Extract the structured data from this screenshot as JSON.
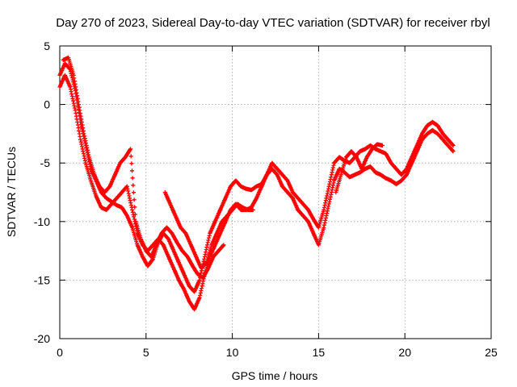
{
  "chart_data": {
    "type": "scatter",
    "title": "Day 270 of 2023, Sidereal Day-to-day VTEC variation (SDTVAR) for receiver rbyl",
    "xlabel": "GPS time / hours",
    "ylabel": "SDTVAR / TECUs",
    "xlim": [
      0,
      25
    ],
    "ylim": [
      -20,
      5
    ],
    "x_ticks": [
      0,
      5,
      10,
      15,
      20,
      25
    ],
    "y_ticks": [
      5,
      0,
      -5,
      -10,
      -15,
      -20
    ],
    "grid": true,
    "marker": "+",
    "series": [
      {
        "name": "track-1",
        "color": "#ff0000",
        "x": [
          0.0,
          0.3,
          0.6,
          0.9,
          1.2,
          1.5,
          1.8,
          2.1,
          2.4,
          2.7,
          3.0,
          3.3,
          3.6,
          3.9,
          4.2,
          4.5,
          4.8,
          5.1,
          5.4,
          5.7,
          6.0,
          6.3,
          6.6,
          6.9,
          7.2,
          7.5,
          7.8,
          8.1,
          8.4,
          8.7,
          9.0,
          9.3,
          9.6,
          9.9,
          10.2,
          10.5,
          10.8,
          11.1,
          11.4,
          11.7,
          12.0,
          12.3,
          12.6,
          12.9,
          13.2,
          13.5,
          13.8,
          14.1,
          14.4,
          14.7,
          15.0,
          15.3,
          15.6,
          15.9,
          16.2,
          16.5,
          16.8,
          17.1,
          17.4,
          17.7,
          18.0,
          18.3,
          18.6,
          18.9,
          19.2,
          19.5,
          19.8,
          20.1,
          20.4,
          20.7,
          21.0,
          21.3,
          21.6,
          21.9,
          22.2,
          22.5,
          22.8
        ],
        "y": [
          2.5,
          3.5,
          3.0,
          1.2,
          -1.5,
          -3.5,
          -5.5,
          -6.5,
          -7.5,
          -8.0,
          -8.3,
          -8.6,
          -8.8,
          -9.5,
          -10.5,
          -12.0,
          -13.0,
          -13.8,
          -13.2,
          -11.8,
          -11.0,
          -11.5,
          -12.5,
          -13.5,
          -14.5,
          -15.5,
          -16.0,
          -15.0,
          -13.0,
          -11.0,
          -10.0,
          -9.0,
          -8.0,
          -7.0,
          -6.5,
          -7.0,
          -7.2,
          -7.3,
          -7.0,
          -6.8,
          -6.0,
          -5.0,
          -5.5,
          -6.0,
          -6.5,
          -7.5,
          -8.0,
          -8.5,
          -9.0,
          -9.8,
          -10.5,
          -9.0,
          -7.0,
          -5.0,
          -4.5,
          -4.8,
          -5.0,
          -4.5,
          -4.0,
          -3.8,
          -3.5,
          -3.8,
          -4.0,
          -4.2,
          -5.0,
          -5.5,
          -6.0,
          -5.5,
          -4.5,
          -3.5,
          -2.5,
          -1.8,
          -1.5,
          -1.8,
          -2.5,
          -3.0,
          -3.5
        ]
      },
      {
        "name": "track-2",
        "color": "#ff0000",
        "x": [
          0.0,
          0.3,
          0.6,
          0.9,
          1.2,
          1.5,
          1.8,
          2.1,
          2.4,
          2.7,
          3.0,
          3.3,
          3.6,
          3.9,
          4.2,
          4.5,
          4.8,
          5.1,
          5.4,
          5.7,
          6.0,
          6.3,
          6.6,
          6.9,
          7.2,
          7.5,
          7.8,
          8.1,
          8.4,
          8.7,
          9.0,
          9.3,
          9.6,
          9.9,
          10.2,
          10.5,
          10.8,
          11.1,
          11.4,
          11.7,
          12.0,
          12.3,
          12.6,
          12.9,
          13.2,
          13.5,
          13.8,
          14.1,
          14.4,
          14.7,
          15.0,
          15.3,
          15.6,
          15.9,
          16.2,
          16.5,
          16.8,
          17.1,
          17.4,
          17.7,
          18.0,
          18.3,
          18.6,
          18.9,
          19.2,
          19.5,
          19.8,
          20.1,
          20.4,
          20.7,
          21.0,
          21.3,
          21.6,
          21.9,
          22.2,
          22.5,
          22.8
        ],
        "y": [
          1.5,
          2.5,
          1.5,
          -0.5,
          -3.0,
          -5.0,
          -6.5,
          -7.8,
          -8.8,
          -9.0,
          -8.5,
          -8.0,
          -7.5,
          -7.0,
          -9.0,
          -11.0,
          -12.0,
          -12.5,
          -12.0,
          -11.5,
          -12.0,
          -13.0,
          -14.0,
          -15.0,
          -15.8,
          -16.8,
          -17.5,
          -16.5,
          -14.5,
          -13.0,
          -12.0,
          -11.0,
          -10.0,
          -9.0,
          -8.5,
          -9.0,
          -9.0,
          -8.8,
          -8.0,
          -7.0,
          -6.0,
          -5.5,
          -6.0,
          -7.0,
          -7.5,
          -8.0,
          -9.0,
          -9.5,
          -10.0,
          -11.0,
          -12.0,
          -10.5,
          -8.5,
          -6.5,
          -5.5,
          -5.8,
          -6.2,
          -6.0,
          -5.8,
          -5.5,
          -5.3,
          -5.8,
          -6.0,
          -6.3,
          -6.5,
          -6.8,
          -6.5,
          -6.0,
          -5.0,
          -4.0,
          -3.0,
          -2.5,
          -2.2,
          -2.5,
          -3.0,
          -3.5,
          -4.0
        ]
      },
      {
        "name": "track-3",
        "color": "#ff0000",
        "x": [
          0.2,
          0.5,
          0.8,
          1.1,
          1.4,
          1.7,
          2.0,
          2.3,
          2.6,
          2.9,
          3.2,
          3.5,
          3.8,
          4.1,
          4.4,
          4.7,
          5.0,
          5.3,
          5.6,
          5.9,
          6.2,
          6.5,
          6.8,
          7.1,
          7.4,
          7.7,
          8.0,
          8.3,
          8.6,
          8.9,
          9.2,
          9.5
        ],
        "y": [
          3.8,
          4.0,
          2.5,
          0.0,
          -2.5,
          -4.5,
          -6.0,
          -7.0,
          -7.5,
          -7.0,
          -6.0,
          -5.0,
          -4.5,
          -3.8,
          -10.0,
          -11.5,
          -12.5,
          -13.0,
          -12.0,
          -11.0,
          -10.5,
          -11.0,
          -11.8,
          -12.5,
          -13.0,
          -13.8,
          -14.5,
          -14.8,
          -14.0,
          -13.0,
          -12.5,
          -12.0
        ]
      },
      {
        "name": "track-4",
        "color": "#ff0000",
        "x": [
          6.1,
          6.4,
          6.7,
          7.0,
          7.3,
          7.6,
          7.9,
          8.2,
          8.5,
          8.8,
          9.1,
          9.4,
          9.7,
          10.0,
          10.3,
          10.6,
          10.9,
          11.2
        ],
        "y": [
          -7.5,
          -8.5,
          -9.5,
          -10.5,
          -11.0,
          -12.0,
          -13.0,
          -14.0,
          -13.5,
          -12.0,
          -11.0,
          -10.0,
          -9.5,
          -9.0,
          -8.5,
          -8.8,
          -9.0,
          -9.0
        ]
      },
      {
        "name": "track-5",
        "color": "#ff0000",
        "x": [
          16.0,
          16.3,
          16.6,
          16.9,
          17.2,
          17.5,
          17.8,
          18.1,
          18.4,
          18.7
        ],
        "y": [
          -7.5,
          -6.0,
          -4.5,
          -4.0,
          -4.5,
          -5.5,
          -4.5,
          -3.8,
          -3.4,
          -3.5
        ]
      }
    ]
  }
}
